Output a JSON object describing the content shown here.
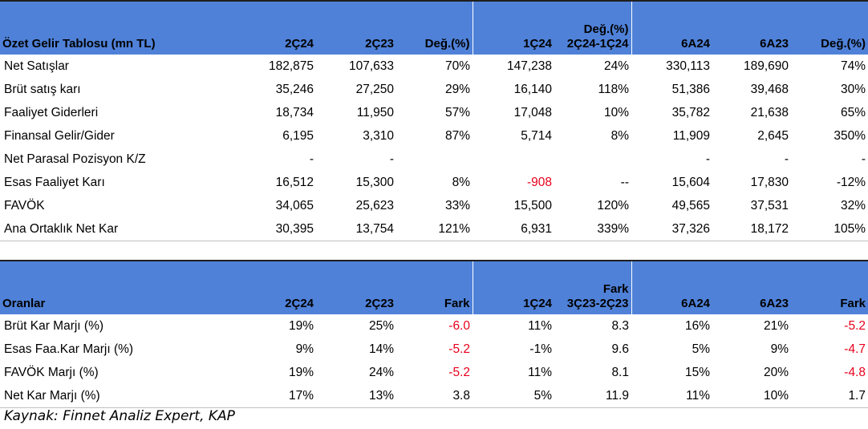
{
  "income": {
    "headers": [
      "Özet Gelir Tablosu (mn TL)",
      "2Ç24",
      "2Ç23",
      "Değ.(%)",
      "1Ç24",
      "Değ.(%)\n2Ç24-1Ç24",
      "6A24",
      "6A23",
      "Değ.(%)"
    ],
    "rows": [
      [
        "Net Satışlar",
        "182,875",
        "107,633",
        "70%",
        "147,238",
        "24%",
        "330,113",
        "189,690",
        "74%"
      ],
      [
        "Brüt satış karı",
        "35,246",
        "27,250",
        "29%",
        "16,140",
        "118%",
        "51,386",
        "39,468",
        "30%"
      ],
      [
        "Faaliyet Giderleri",
        "18,734",
        "11,950",
        "57%",
        "17,048",
        "10%",
        "35,782",
        "21,638",
        "65%"
      ],
      [
        "Finansal Gelir/Gider",
        "6,195",
        "3,310",
        "87%",
        "5,714",
        "8%",
        "11,909",
        "2,645",
        "350%"
      ],
      [
        "Net Parasal Pozisyon K/Z",
        "-",
        "-",
        "",
        "",
        "",
        "-",
        "-",
        "-"
      ],
      [
        "Esas Faaliyet Karı",
        "16,512",
        "15,300",
        "8%",
        "-908",
        "--",
        "15,604",
        "17,830",
        "-12%"
      ],
      [
        "FAVÖK",
        "34,065",
        "25,623",
        "33%",
        "15,500",
        "120%",
        "49,565",
        "37,531",
        "32%"
      ],
      [
        "Ana Ortaklık Net Kar",
        "30,395",
        "13,754",
        "121%",
        "6,931",
        "339%",
        "37,326",
        "18,172",
        "105%"
      ]
    ],
    "negatives": [
      [
        5,
        4
      ]
    ]
  },
  "ratios": {
    "headers": [
      "Oranlar",
      "2Ç24",
      "2Ç23",
      "Fark",
      "1Ç24",
      "Fark\n3Ç23-2Ç23",
      "6A24",
      "6A23",
      "Fark"
    ],
    "rows": [
      [
        "Brüt Kar Marjı (%)",
        "19%",
        "25%",
        "-6.0",
        "11%",
        "8.3",
        "16%",
        "21%",
        "-5.2"
      ],
      [
        "Esas Faa.Kar Marjı (%)",
        "9%",
        "14%",
        "-5.2",
        "-1%",
        "9.6",
        "5%",
        "9%",
        "-4.7"
      ],
      [
        "FAVÖK Marjı (%)",
        "19%",
        "24%",
        "-5.2",
        "11%",
        "8.1",
        "15%",
        "20%",
        "-4.8"
      ],
      [
        "Net Kar Marjı (%)",
        "17%",
        "13%",
        "3.8",
        "5%",
        "11.9",
        "11%",
        "10%",
        "1.7"
      ]
    ],
    "negatives": [
      [
        0,
        3
      ],
      [
        0,
        8
      ],
      [
        1,
        3
      ],
      [
        1,
        8
      ],
      [
        2,
        3
      ],
      [
        2,
        8
      ]
    ]
  },
  "source": "Kaynak: Finnet Analiz Expert, KAP",
  "colors": {
    "header_bg": "#4f81d8",
    "negative": "#e8001c"
  }
}
